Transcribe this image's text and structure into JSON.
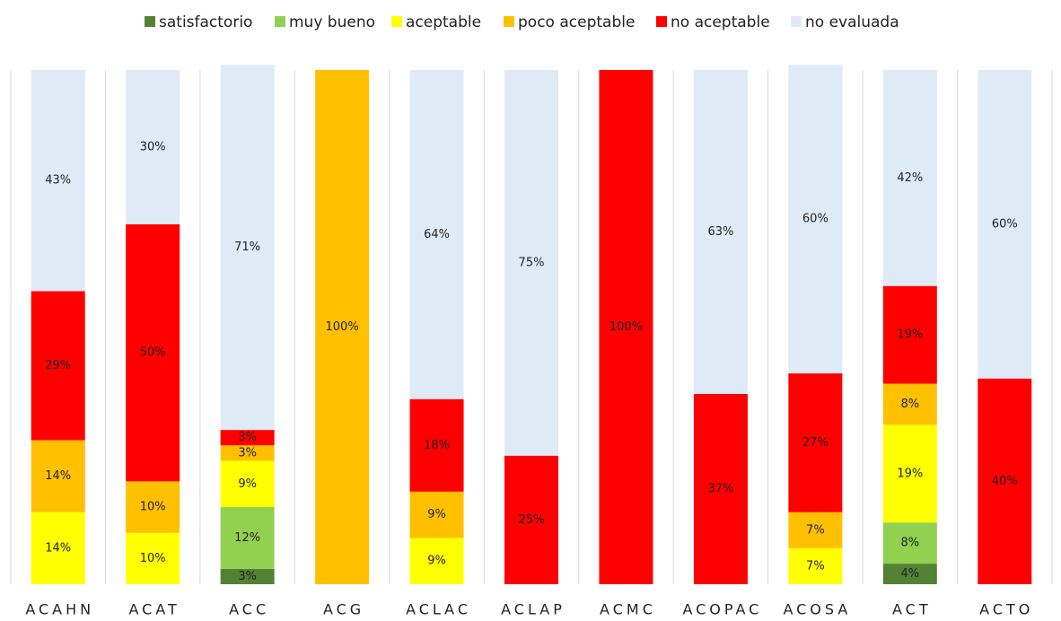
{
  "chart_data": {
    "type": "stacked_bar",
    "categories": [
      "ACAHN",
      "ACAT",
      "ACC",
      "ACG",
      "ACLAC",
      "ACLAP",
      "ACMC",
      "ACOPAC",
      "ACOSA",
      "ACT",
      "ACTO"
    ],
    "ylim": [
      0,
      100
    ],
    "series": [
      {
        "name": "satisfactorio",
        "color": "#548235",
        "values": [
          null,
          null,
          3,
          null,
          null,
          null,
          null,
          null,
          null,
          4,
          null
        ],
        "value_labels": [
          null,
          null,
          "3%",
          null,
          null,
          null,
          null,
          null,
          null,
          "4%",
          null
        ]
      },
      {
        "name": "muy bueno",
        "color": "#92d050",
        "values": [
          null,
          null,
          12,
          null,
          null,
          null,
          null,
          null,
          null,
          8,
          null
        ],
        "value_labels": [
          null,
          null,
          "12%",
          null,
          null,
          null,
          null,
          null,
          null,
          "8%",
          null
        ]
      },
      {
        "name": "aceptable",
        "color": "#ffff00",
        "values": [
          14,
          10,
          9,
          null,
          9,
          null,
          null,
          null,
          7,
          19,
          null
        ],
        "value_labels": [
          "14%",
          "10%",
          "9%",
          null,
          "9%",
          null,
          null,
          null,
          "7%",
          "19%",
          null
        ]
      },
      {
        "name": "poco aceptable",
        "color": "#ffc000",
        "values": [
          14,
          10,
          3,
          100,
          9,
          null,
          null,
          null,
          7,
          8,
          null
        ],
        "value_labels": [
          "14%",
          "10%",
          "3%",
          "100%",
          "9%",
          null,
          null,
          null,
          "7%",
          "8%",
          null
        ]
      },
      {
        "name": "no aceptable",
        "color": "#ff0000",
        "values": [
          29,
          50,
          3,
          null,
          18,
          25,
          100,
          37,
          27,
          19,
          40
        ],
        "value_labels": [
          "29%",
          "50%",
          "3%",
          null,
          "18%",
          "25%",
          "100%",
          "37%",
          "27%",
          "19%",
          "40%"
        ]
      },
      {
        "name": "no evaluada",
        "color": "#deebf7",
        "values": [
          43,
          30,
          71,
          null,
          64,
          75,
          null,
          63,
          60,
          42,
          60
        ],
        "value_labels": [
          "43%",
          "30%",
          "71%",
          null,
          "64%",
          "75%",
          null,
          "63%",
          "60%",
          "42%",
          "60%"
        ]
      }
    ]
  }
}
